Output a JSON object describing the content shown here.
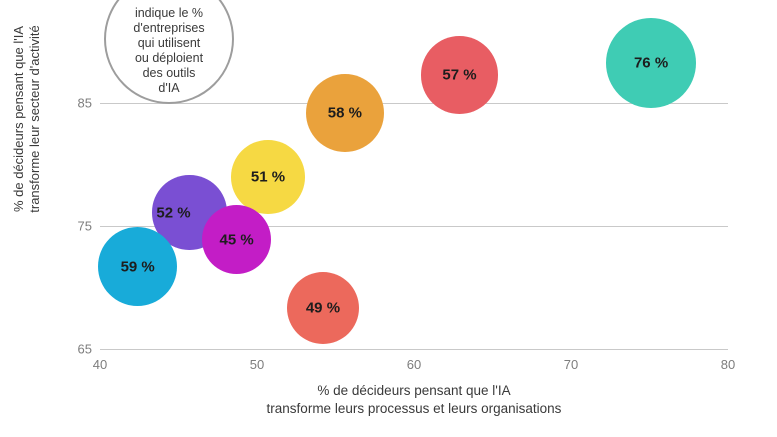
{
  "callout": {
    "lines": [
      "indique le %",
      "d'entreprises",
      "qui utilisent",
      "ou déploient",
      "des outils",
      "d'IA"
    ]
  },
  "chart_data": {
    "type": "scatter",
    "subtype": "bubble",
    "xlabel_lines": [
      "% de décideurs pensant que l'IA",
      "transforme leurs processus et leurs organisations"
    ],
    "ylabel_lines": [
      "% de décideurs pensant que l'IA",
      "transforme leur secteur d'activité"
    ],
    "xlim": [
      40,
      80
    ],
    "ylim": [
      65,
      93.4
    ],
    "x_ticks": [
      40,
      50,
      60,
      70,
      80
    ],
    "y_ticks": [
      85,
      75,
      65
    ],
    "grid": "horizontal",
    "legend_position": "top-left-callout",
    "bubble_radius_scale": 5.15,
    "points": [
      {
        "value": 76,
        "label": "76 %",
        "x": 75.1,
        "y": 88.3,
        "color": "#3fccb4"
      },
      {
        "value": 57,
        "label": "57 %",
        "x": 62.9,
        "y": 87.3,
        "color": "#e85d63"
      },
      {
        "value": 58,
        "label": "58 %",
        "x": 55.6,
        "y": 84.2,
        "color": "#eaa23c"
      },
      {
        "value": 51,
        "label": "51 %",
        "x": 50.7,
        "y": 79.0,
        "color": "#f6d943"
      },
      {
        "value": 52,
        "label": "52 %",
        "x": 45.7,
        "y": 76.1,
        "color": "#7a4fd3",
        "label_dx": -16
      },
      {
        "value": 45,
        "label": "45 %",
        "x": 48.7,
        "y": 73.9,
        "color": "#c31dc6"
      },
      {
        "value": 59,
        "label": "59 %",
        "x": 42.4,
        "y": 71.7,
        "color": "#18abd9"
      },
      {
        "value": 49,
        "label": "49 %",
        "x": 54.2,
        "y": 68.3,
        "color": "#ec695c"
      }
    ]
  }
}
